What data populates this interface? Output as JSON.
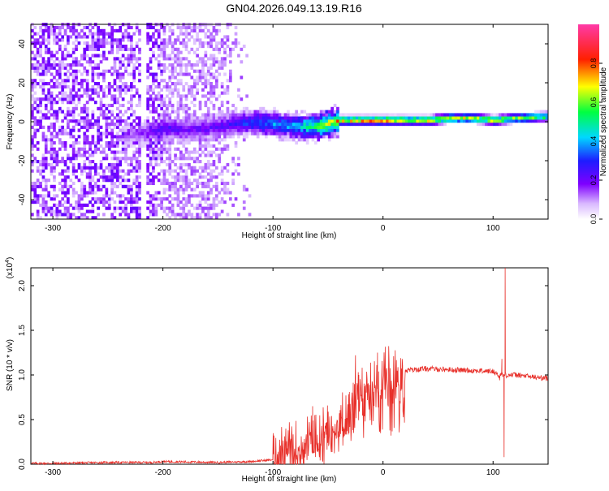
{
  "title": "GN04.2026.049.13.19.R16",
  "colors": {
    "snr_line": "#e8302a",
    "axis": "#000000"
  },
  "chart_data": [
    {
      "type": "heatmap",
      "title": "GN04.2026.049.13.19.R16",
      "xlabel": "Height of straight line (km)",
      "ylabel": "Frequency (Hz)",
      "xlim": [
        -320,
        150
      ],
      "ylim": [
        -50,
        50
      ],
      "x_ticks": [
        -300,
        -200,
        -100,
        0,
        100
      ],
      "y_ticks": [
        -40,
        -20,
        0,
        20,
        40
      ],
      "colorbar": {
        "label": "Normalized spectral amplitude",
        "range": [
          0.0,
          1.0
        ],
        "ticks": [
          "0.0",
          "0.2",
          "0.4",
          "0.6",
          "0.8"
        ],
        "colormap": "rainbow (white-violet-blue-cyan-green-yellow-red-magenta)"
      },
      "features": [
        {
          "name": "broadband noise",
          "x_range": [
            -320,
            -120
          ],
          "freq_range": [
            -50,
            50
          ],
          "amplitude": 0.1
        },
        {
          "name": "signal ridge",
          "x_range": [
            -120,
            150
          ],
          "freq_center": 0,
          "amplitude_peak": 0.95
        }
      ],
      "ridge": {
        "x": [
          -230,
          -200,
          -180,
          -160,
          -140,
          -120,
          -100,
          -80,
          -60,
          -40,
          -20,
          0,
          20,
          40,
          60,
          80,
          100,
          120,
          150
        ],
        "freq": [
          -8,
          -4,
          -5,
          -4,
          -2,
          -1,
          -2,
          -3,
          -3,
          0,
          0,
          0,
          0,
          0,
          1,
          1,
          0,
          1,
          2
        ],
        "amplitude": [
          0.15,
          0.3,
          0.25,
          0.25,
          0.3,
          0.4,
          0.45,
          0.5,
          0.7,
          0.9,
          0.95,
          0.95,
          0.9,
          0.85,
          0.85,
          0.8,
          0.85,
          0.75,
          0.7
        ]
      }
    },
    {
      "type": "line",
      "xlabel": "Height of straight line (km)",
      "ylabel": "SNR (10 * v/v)",
      "y_multiplier": "(x10^4)",
      "xlim": [
        -320,
        150
      ],
      "ylim": [
        0,
        2.2
      ],
      "x_ticks": [
        -300,
        -200,
        -100,
        0,
        100
      ],
      "y_ticks": [
        "0.0",
        "0.5",
        "1.0",
        "1.5",
        "2.0"
      ],
      "series": [
        {
          "x": [
            -320,
            -300,
            -250,
            -210,
            -200,
            -150,
            -120,
            -100,
            -90,
            -80,
            -70,
            -60,
            -50,
            -40,
            -30,
            -20,
            -10,
            0,
            10,
            20,
            30,
            40,
            60,
            80,
            100,
            105,
            108,
            110,
            112,
            120,
            150
          ],
          "y": [
            0.01,
            0.01,
            0.02,
            0.02,
            0.03,
            0.02,
            0.03,
            0.05,
            0.1,
            0.15,
            0.22,
            0.25,
            0.3,
            0.45,
            0.6,
            0.75,
            0.85,
            0.95,
            1.0,
            1.05,
            1.06,
            1.07,
            1.06,
            1.05,
            1.04,
            1.0,
            0.9,
            2.2,
            1.0,
            1.0,
            0.96
          ],
          "spikes": [
            {
              "x": -64,
              "y": 0.65
            },
            {
              "x": -62,
              "y": 0.55
            },
            {
              "x": -25,
              "y": 1.22
            },
            {
              "x": -22,
              "y": 1.0
            },
            {
              "x": -5,
              "y": 1.25
            },
            {
              "x": 108,
              "y": 1.18
            },
            {
              "x": 110,
              "y": 0.08
            },
            {
              "x": 111,
              "y": 2.2
            }
          ]
        }
      ]
    }
  ]
}
